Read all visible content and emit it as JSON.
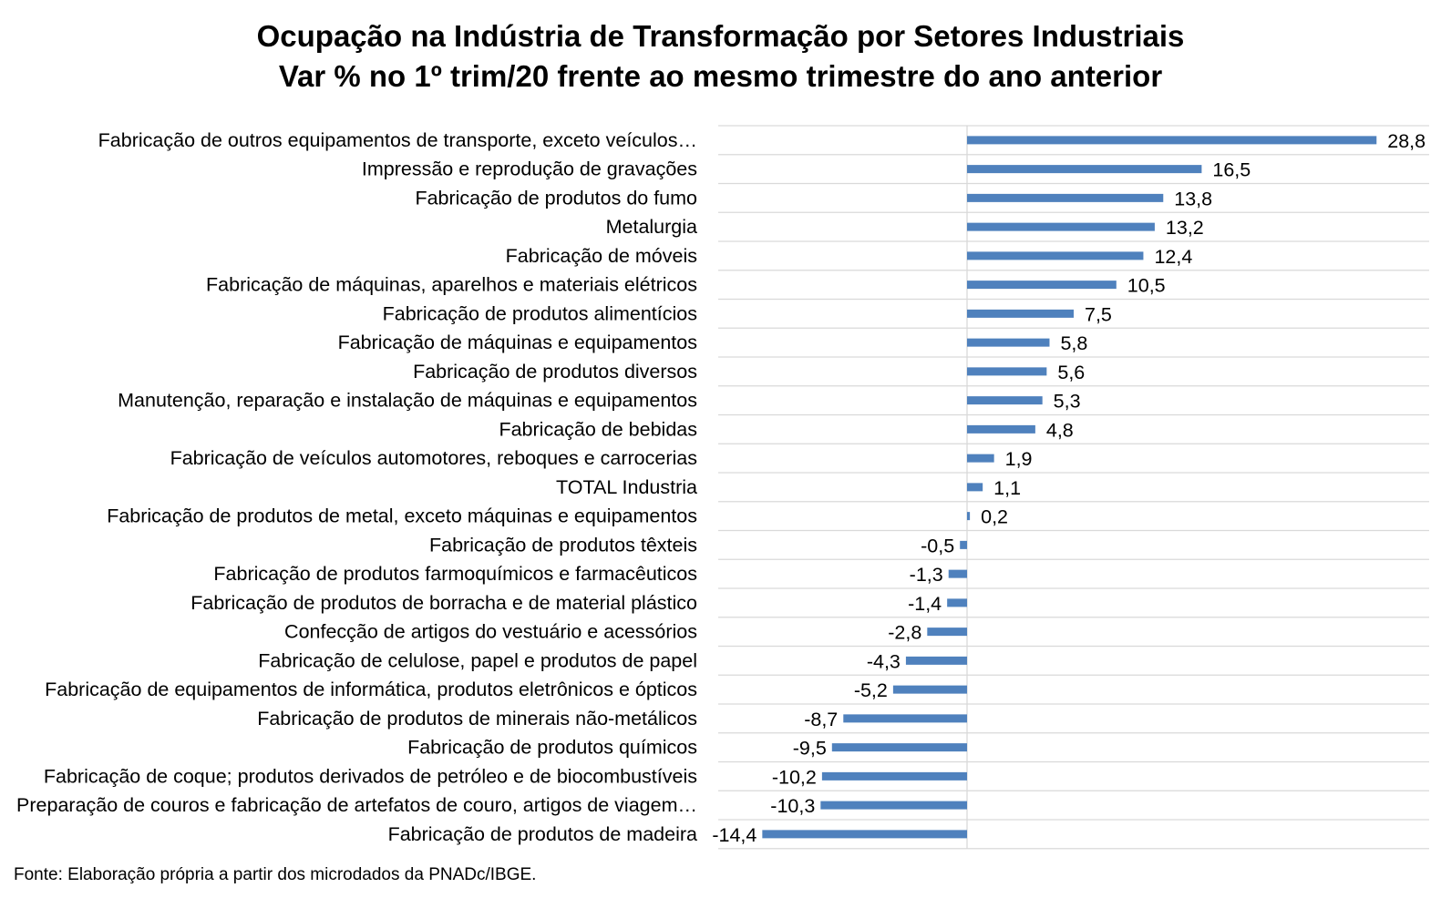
{
  "chart_data": {
    "type": "bar",
    "orientation": "horizontal",
    "title": "Ocupação na Indústria de Transformação por Setores Industriais",
    "subtitle": "Var % no 1º trim/20 frente ao mesmo trimestre do ano anterior",
    "categories": [
      "Fabricação de outros equipamentos de transporte, exceto veículos…",
      "Impressão e reprodução de gravações",
      "Fabricação de produtos do fumo",
      "Metalurgia",
      "Fabricação de móveis",
      "Fabricação de máquinas, aparelhos e materiais elétricos",
      "Fabricação de produtos alimentícios",
      "Fabricação de máquinas e equipamentos",
      "Fabricação de produtos diversos",
      "Manutenção, reparação e instalação de máquinas e equipamentos",
      "Fabricação de bebidas",
      "Fabricação de veículos automotores, reboques e carrocerias",
      "TOTAL Industria",
      "Fabricação de produtos de metal, exceto máquinas e equipamentos",
      "Fabricação de produtos têxteis",
      "Fabricação de produtos farmoquímicos e farmacêuticos",
      "Fabricação de produtos de borracha e de material plástico",
      "Confecção de artigos do vestuário e acessórios",
      "Fabricação de celulose, papel e produtos de papel",
      "Fabricação de equipamentos de informática, produtos eletrônicos e ópticos",
      "Fabricação de produtos de minerais não-metálicos",
      "Fabricação de produtos químicos",
      "Fabricação de coque; produtos derivados de petróleo e de biocombustíveis",
      "Preparação de couros e fabricação de artefatos de couro, artigos de viagem…",
      "Fabricação de produtos de madeira"
    ],
    "values": [
      28.8,
      16.5,
      13.8,
      13.2,
      12.4,
      10.5,
      7.5,
      5.8,
      5.6,
      5.3,
      4.8,
      1.9,
      1.1,
      0.2,
      -0.5,
      -1.3,
      -1.4,
      -2.8,
      -4.3,
      -5.2,
      -8.7,
      -9.5,
      -10.2,
      -10.3,
      -14.4
    ],
    "value_labels": [
      "28,8",
      "16,5",
      "13,8",
      "13,2",
      "12,4",
      "10,5",
      "7,5",
      "5,8",
      "5,6",
      "5,3",
      "4,8",
      "1,9",
      "1,1",
      "0,2",
      "-0,5",
      "-1,3",
      "-1,4",
      "-2,8",
      "-4,3",
      "-5,2",
      "-8,7",
      "-9,5",
      "-10,2",
      "-10,3",
      "-14,4"
    ],
    "xlim": [
      -17.5,
      32.5
    ],
    "grid": true,
    "legend": "none",
    "bar_color": "#4f81bd",
    "grid_color": "#d9d9d9",
    "source": "Fonte: Elaboração própria a partir dos microdados da PNADc/IBGE."
  }
}
